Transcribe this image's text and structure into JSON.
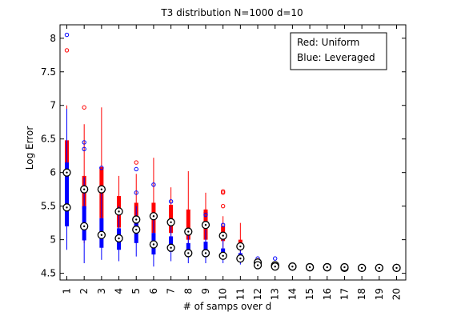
{
  "chart_data": {
    "type": "box",
    "title": "T3 distribution N=1000 d=10",
    "xlabel": "# of samps over d",
    "ylabel": "Log Error",
    "ylim": [
      4.4,
      8.2
    ],
    "yticks": [
      4.5,
      5,
      5.5,
      6,
      6.5,
      7,
      7.5,
      8
    ],
    "ytick_labels": [
      "4.5",
      "5",
      "5.5",
      "6",
      "6.5",
      "7",
      "7.5",
      "8"
    ],
    "categories": [
      "1",
      "2",
      "3",
      "4",
      "5",
      "6",
      "7",
      "8",
      "9",
      "10",
      "11",
      "12",
      "13",
      "14",
      "15",
      "16",
      "17",
      "18",
      "19",
      "20"
    ],
    "legend": {
      "placement": "top-right",
      "entries": [
        "Red: Uniform",
        "Blue: Leveraged"
      ]
    },
    "colors": {
      "uniform": "#ff0000",
      "leveraged": "#0000ff",
      "median_marker": "#000000"
    },
    "series": [
      {
        "name": "Uniform",
        "boxes": [
          {
            "q1": 5.48,
            "median": 6.0,
            "q3": 6.48,
            "wlo": 4.95,
            "whi": 7.0,
            "outliers": [
              7.82
            ]
          },
          {
            "q1": 5.45,
            "median": 5.75,
            "q3": 5.95,
            "wlo": 4.95,
            "whi": 6.72,
            "outliers": [
              6.97
            ]
          },
          {
            "q1": 5.32,
            "median": 5.75,
            "q3": 6.08,
            "wlo": 4.95,
            "whi": 6.97,
            "outliers": []
          },
          {
            "q1": 5.18,
            "median": 5.42,
            "q3": 5.65,
            "wlo": 4.93,
            "whi": 5.95,
            "outliers": []
          },
          {
            "q1": 5.12,
            "median": 5.3,
            "q3": 5.55,
            "wlo": 4.95,
            "whi": 5.98,
            "outliers": [
              6.15
            ]
          },
          {
            "q1": 5.1,
            "median": 5.35,
            "q3": 5.55,
            "wlo": 4.95,
            "whi": 6.22,
            "outliers": []
          },
          {
            "q1": 5.1,
            "median": 5.26,
            "q3": 5.52,
            "wlo": 4.92,
            "whi": 5.78,
            "outliers": []
          },
          {
            "q1": 5.0,
            "median": 5.12,
            "q3": 5.45,
            "wlo": 4.85,
            "whi": 6.02,
            "outliers": []
          },
          {
            "q1": 5.0,
            "median": 5.22,
            "q3": 5.45,
            "wlo": 4.82,
            "whi": 5.7,
            "outliers": [
              5.4
            ]
          },
          {
            "q1": 4.98,
            "median": 5.06,
            "q3": 5.2,
            "wlo": 4.82,
            "whi": 5.35,
            "outliers": [
              5.72,
              5.7,
              5.5
            ]
          },
          {
            "q1": 4.85,
            "median": 4.9,
            "q3": 5.0,
            "wlo": 4.75,
            "whi": 5.25,
            "outliers": []
          },
          {
            "q1": 4.64,
            "median": 4.66,
            "q3": 4.7,
            "wlo": 4.6,
            "whi": 4.73,
            "outliers": []
          },
          {
            "q1": 4.6,
            "median": 4.62,
            "q3": 4.64,
            "wlo": 4.58,
            "whi": 4.66,
            "outliers": []
          },
          {
            "q1": 4.59,
            "median": 4.6,
            "q3": 4.62,
            "wlo": 4.57,
            "whi": 4.64,
            "outliers": []
          },
          {
            "q1": 4.58,
            "median": 4.59,
            "q3": 4.61,
            "wlo": 4.56,
            "whi": 4.63,
            "outliers": []
          },
          {
            "q1": 4.58,
            "median": 4.59,
            "q3": 4.6,
            "wlo": 4.56,
            "whi": 4.62,
            "outliers": []
          },
          {
            "q1": 4.57,
            "median": 4.58,
            "q3": 4.6,
            "wlo": 4.55,
            "whi": 4.62,
            "outliers": []
          },
          {
            "q1": 4.57,
            "median": 4.58,
            "q3": 4.59,
            "wlo": 4.55,
            "whi": 4.61,
            "outliers": []
          },
          {
            "q1": 4.57,
            "median": 4.58,
            "q3": 4.59,
            "wlo": 4.55,
            "whi": 4.61,
            "outliers": []
          },
          {
            "q1": 4.57,
            "median": 4.58,
            "q3": 4.59,
            "wlo": 4.55,
            "whi": 4.61,
            "outliers": []
          }
        ]
      },
      {
        "name": "Leveraged",
        "boxes": [
          {
            "q1": 5.2,
            "median": 5.48,
            "q3": 6.15,
            "wlo": 4.85,
            "whi": 6.95,
            "outliers": [
              8.05
            ]
          },
          {
            "q1": 4.99,
            "median": 5.2,
            "q3": 5.5,
            "wlo": 4.65,
            "whi": 5.93,
            "outliers": [
              6.45,
              6.35
            ]
          },
          {
            "q1": 4.88,
            "median": 5.07,
            "q3": 5.32,
            "wlo": 4.7,
            "whi": 5.75,
            "outliers": [
              6.07
            ]
          },
          {
            "q1": 4.85,
            "median": 5.02,
            "q3": 5.17,
            "wlo": 4.68,
            "whi": 5.5,
            "outliers": []
          },
          {
            "q1": 4.95,
            "median": 5.15,
            "q3": 5.27,
            "wlo": 4.75,
            "whi": 5.5,
            "outliers": [
              5.7,
              6.05
            ]
          },
          {
            "q1": 4.78,
            "median": 4.93,
            "q3": 5.1,
            "wlo": 4.6,
            "whi": 5.32,
            "outliers": [
              5.82
            ]
          },
          {
            "q1": 4.82,
            "median": 4.88,
            "q3": 5.05,
            "wlo": 4.68,
            "whi": 5.3,
            "outliers": [
              5.57
            ]
          },
          {
            "q1": 4.76,
            "median": 4.8,
            "q3": 4.95,
            "wlo": 4.65,
            "whi": 5.15,
            "outliers": []
          },
          {
            "q1": 4.75,
            "median": 4.8,
            "q3": 4.97,
            "wlo": 4.65,
            "whi": 5.15,
            "outliers": [
              5.37
            ]
          },
          {
            "q1": 4.72,
            "median": 4.76,
            "q3": 4.87,
            "wlo": 4.65,
            "whi": 5.1,
            "outliers": [
              5.22
            ]
          },
          {
            "q1": 4.69,
            "median": 4.72,
            "q3": 4.8,
            "wlo": 4.63,
            "whi": 4.88,
            "outliers": []
          },
          {
            "q1": 4.61,
            "median": 4.62,
            "q3": 4.64,
            "wlo": 4.59,
            "whi": 4.66,
            "outliers": [
              4.72
            ]
          },
          {
            "q1": 4.59,
            "median": 4.6,
            "q3": 4.62,
            "wlo": 4.57,
            "whi": 4.64,
            "outliers": [
              4.72
            ]
          },
          {
            "q1": 4.59,
            "median": 4.6,
            "q3": 4.61,
            "wlo": 4.57,
            "whi": 4.63,
            "outliers": []
          },
          {
            "q1": 4.58,
            "median": 4.59,
            "q3": 4.6,
            "wlo": 4.56,
            "whi": 4.62,
            "outliers": []
          },
          {
            "q1": 4.58,
            "median": 4.59,
            "q3": 4.6,
            "wlo": 4.56,
            "whi": 4.62,
            "outliers": []
          },
          {
            "q1": 4.58,
            "median": 4.59,
            "q3": 4.6,
            "wlo": 4.56,
            "whi": 4.61,
            "outliers": []
          },
          {
            "q1": 4.57,
            "median": 4.58,
            "q3": 4.59,
            "wlo": 4.56,
            "whi": 4.61,
            "outliers": []
          },
          {
            "q1": 4.57,
            "median": 4.58,
            "q3": 4.59,
            "wlo": 4.56,
            "whi": 4.6,
            "outliers": []
          },
          {
            "q1": 4.57,
            "median": 4.58,
            "q3": 4.59,
            "wlo": 4.56,
            "whi": 4.6,
            "outliers": []
          }
        ]
      }
    ]
  }
}
